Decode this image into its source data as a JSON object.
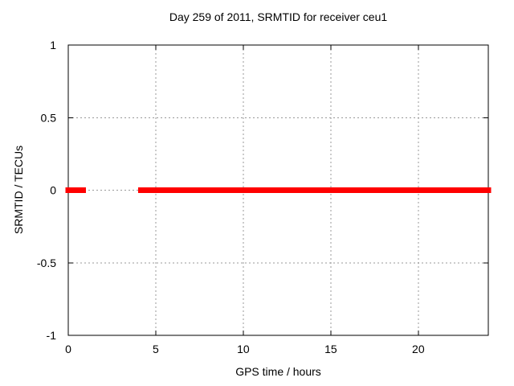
{
  "chart_data": {
    "type": "line",
    "title": "Day 259 of 2011, SRMTID for receiver ceu1",
    "xlabel": "GPS time / hours",
    "ylabel": "SRMTID / TECUs",
    "xlim": [
      0,
      24
    ],
    "ylim": [
      -1,
      1
    ],
    "xticks": [
      0,
      5,
      10,
      15,
      20
    ],
    "yticks": [
      1,
      0.5,
      0,
      -0.5,
      -1
    ],
    "xtick_labels": [
      "0",
      "5",
      "10",
      "15",
      "20"
    ],
    "ytick_labels": [
      "1",
      "0.5",
      "0",
      "-0.5",
      "-1"
    ],
    "grid": true,
    "legend": "none",
    "series": [
      {
        "name": "SRMTID",
        "color": "#ff0000",
        "line_width": 7,
        "segments": [
          {
            "x_start": 0,
            "x_end": 0.85,
            "y": 0
          },
          {
            "x_start": 4.15,
            "x_end": 24,
            "y": 0
          }
        ]
      }
    ]
  },
  "colors": {
    "background": "#ffffff",
    "axis": "#000000",
    "grid": "#999999",
    "text": "#000000",
    "line": "#ff0000"
  }
}
